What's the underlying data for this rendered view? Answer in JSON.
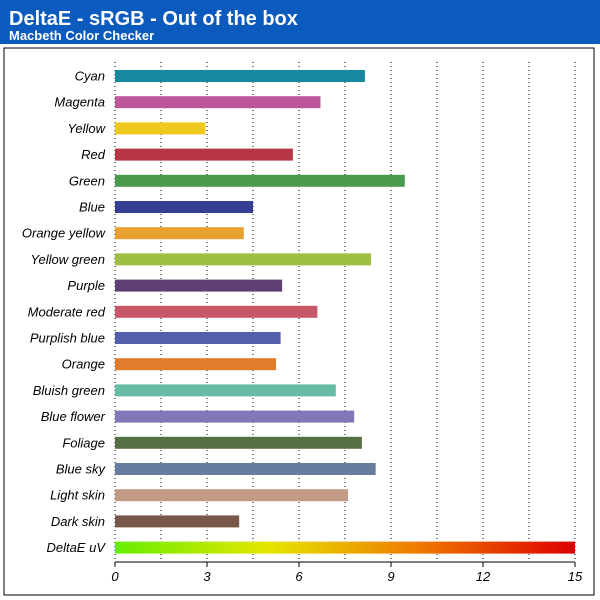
{
  "header": {
    "title": "DeltaE - sRGB - Out of the box",
    "subtitle": "Macbeth Color Checker"
  },
  "colors": {
    "header_bg": "#0a5bbd",
    "plot_bg": "#ffffff",
    "frame": "#000000",
    "gradient": [
      "#66ee00",
      "#e6e600",
      "#ee7700",
      "#dd0000"
    ]
  },
  "chart_data": {
    "type": "bar",
    "orientation": "horizontal",
    "categories": [
      "Cyan",
      "Magenta",
      "Yellow",
      "Red",
      "Green",
      "Blue",
      "Orange yellow",
      "Yellow green",
      "Purple",
      "Moderate red",
      "Purplish blue",
      "Orange",
      "Bluish green",
      "Blue flower",
      "Foliage",
      "Blue sky",
      "Light skin",
      "Dark skin",
      "DeltaE uV"
    ],
    "values": [
      8.15,
      6.7,
      2.95,
      5.8,
      9.45,
      4.5,
      4.2,
      8.35,
      5.45,
      6.6,
      5.4,
      5.25,
      7.2,
      7.8,
      8.05,
      8.5,
      7.6,
      4.05,
      15
    ],
    "bar_colors": [
      "#16899e",
      "#c0569a",
      "#efc91e",
      "#b83645",
      "#4a9a4e",
      "#363f94",
      "#e8a02e",
      "#9ebf44",
      "#603f74",
      "#c75666",
      "#535fac",
      "#df7d2a",
      "#67bca5",
      "#8077b6",
      "#566f44",
      "#677da0",
      "#c29a86",
      "#775747",
      "gradient"
    ],
    "xlim": [
      0,
      15
    ],
    "xticks": [
      0,
      3,
      6,
      9,
      12,
      15
    ],
    "grid": "vertical-dotted",
    "xlabel": "",
    "ylabel": ""
  }
}
